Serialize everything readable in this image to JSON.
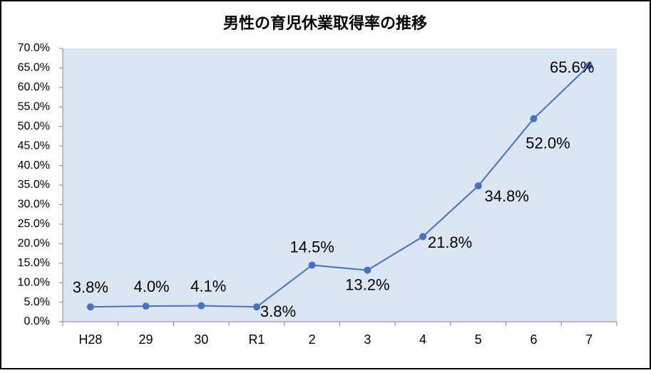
{
  "chart_data": {
    "type": "line",
    "title": "男性の育児休業取得率の推移",
    "categories": [
      "H28",
      "29",
      "30",
      "R1",
      "2",
      "3",
      "4",
      "5",
      "6",
      "7"
    ],
    "series": [
      {
        "name": "男性の育児休業取得率",
        "color": "#4472c4",
        "values": [
          3.8,
          4.0,
          4.1,
          3.8,
          14.5,
          13.2,
          21.8,
          34.8,
          52.0,
          65.6
        ],
        "value_labels": [
          "3.8%",
          "4.0%",
          "4.1%",
          "3.8%",
          "14.5%",
          "13.2%",
          "21.8%",
          "34.8%",
          "52.0%",
          "65.6%"
        ]
      }
    ],
    "ylim": [
      0,
      70
    ],
    "yticks": [
      {
        "value": 0,
        "label": "0.0%"
      },
      {
        "value": 5,
        "label": "5.0%"
      },
      {
        "value": 10,
        "label": "10.0%"
      },
      {
        "value": 15,
        "label": "15.0%"
      },
      {
        "value": 20,
        "label": "20.0%"
      },
      {
        "value": 25,
        "label": "25.0%"
      },
      {
        "value": 30,
        "label": "30.0%"
      },
      {
        "value": 35,
        "label": "35.0%"
      },
      {
        "value": 40,
        "label": "40.0%"
      },
      {
        "value": 45,
        "label": "45.0%"
      },
      {
        "value": 50,
        "label": "50.0%"
      },
      {
        "value": 55,
        "label": "55.0%"
      },
      {
        "value": 60,
        "label": "60.0%"
      },
      {
        "value": 65,
        "label": "65.0%"
      },
      {
        "value": 70,
        "label": "70.0%"
      }
    ],
    "plot_background": "#dce6f2"
  }
}
